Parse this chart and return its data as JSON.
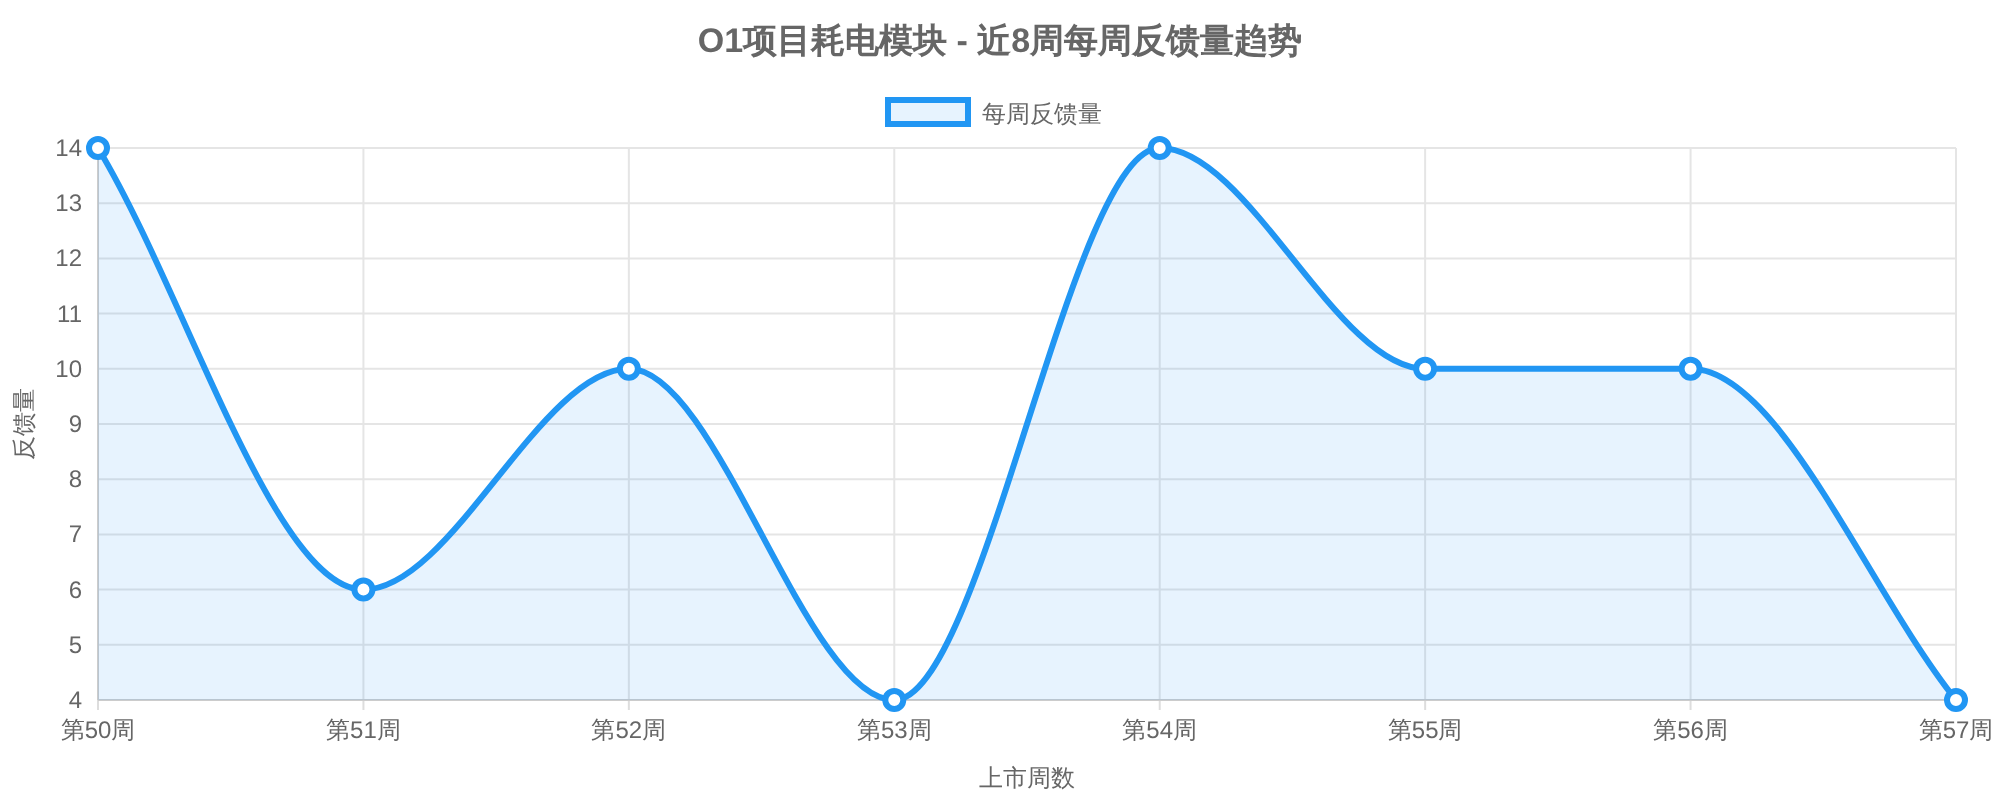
{
  "chart_data": {
    "type": "area",
    "title": "O1项目耗电模块 - 近8周每周反馈量趋势",
    "xlabel": "上市周数",
    "ylabel": "反馈量",
    "categories": [
      "第50周",
      "第51周",
      "第52周",
      "第53周",
      "第54周",
      "第55周",
      "第56周",
      "第57周"
    ],
    "series": [
      {
        "name": "每周反馈量",
        "color": "#2196f3",
        "values": [
          14,
          6,
          10,
          4,
          14,
          10,
          10,
          4
        ]
      }
    ],
    "ylim": [
      4,
      14
    ],
    "yticks": [
      4,
      5,
      6,
      7,
      8,
      9,
      10,
      11,
      12,
      13,
      14
    ],
    "grid": true,
    "legend": "top",
    "marker": "circle",
    "line_style": "solid"
  }
}
